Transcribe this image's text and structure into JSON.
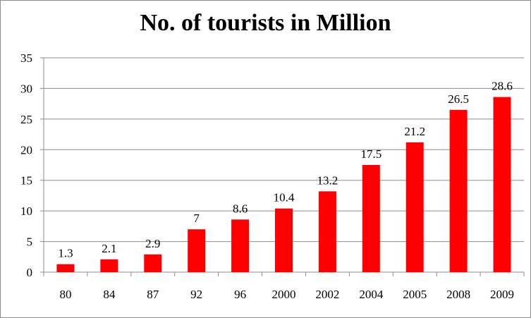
{
  "chart_data": {
    "type": "bar",
    "title": "No. of tourists in Million",
    "xlabel": "",
    "ylabel": "",
    "categories": [
      "80",
      "84",
      "87",
      "92",
      "96",
      "2000",
      "2002",
      "2004",
      "2005",
      "2008",
      "2009"
    ],
    "values": [
      1.3,
      2.1,
      2.9,
      7,
      8.6,
      10.4,
      13.2,
      17.5,
      21.2,
      26.5,
      28.6
    ],
    "value_labels": [
      "1.3",
      "2.1",
      "2.9",
      "7",
      "8.6",
      "10.4",
      "13.2",
      "17.5",
      "21.2",
      "26.5",
      "28.6"
    ],
    "ylim": [
      0,
      35
    ],
    "yticks": [
      "0",
      "5",
      "10",
      "15",
      "20",
      "25",
      "30",
      "35"
    ],
    "grid": true,
    "legend": "none",
    "colors": {
      "bar": "#ff0000",
      "grid": "#8c8c8c",
      "axis": "#8c8c8c"
    }
  }
}
